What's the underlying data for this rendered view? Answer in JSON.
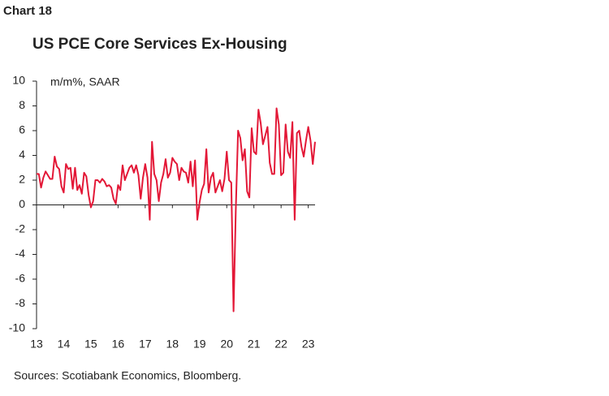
{
  "chart_data": {
    "type": "line",
    "label": "Chart 18",
    "title": "US PCE Core Services Ex-Housing",
    "annotation": "m/m%, SAAR",
    "source": "Sources: Scotiabank Economics, Bloomberg.",
    "x": [
      13,
      13.083,
      13.167,
      13.25,
      13.333,
      13.417,
      13.5,
      13.583,
      13.667,
      13.75,
      13.833,
      13.917,
      14,
      14.083,
      14.167,
      14.25,
      14.333,
      14.417,
      14.5,
      14.583,
      14.667,
      14.75,
      14.833,
      14.917,
      15,
      15.083,
      15.167,
      15.25,
      15.333,
      15.417,
      15.5,
      15.583,
      15.667,
      15.75,
      15.833,
      15.917,
      16,
      16.083,
      16.167,
      16.25,
      16.333,
      16.417,
      16.5,
      16.583,
      16.667,
      16.75,
      16.833,
      16.917,
      17,
      17.083,
      17.167,
      17.25,
      17.333,
      17.417,
      17.5,
      17.583,
      17.667,
      17.75,
      17.833,
      17.917,
      18,
      18.083,
      18.167,
      18.25,
      18.333,
      18.417,
      18.5,
      18.583,
      18.667,
      18.75,
      18.833,
      18.917,
      19,
      19.083,
      19.167,
      19.25,
      19.333,
      19.417,
      19.5,
      19.583,
      19.667,
      19.75,
      19.833,
      19.917,
      20,
      20.083,
      20.167,
      20.25,
      20.333,
      20.417,
      20.5,
      20.583,
      20.667,
      20.75,
      20.833,
      20.917,
      21,
      21.083,
      21.167,
      21.25,
      21.333,
      21.417,
      21.5,
      21.583,
      21.667,
      21.75,
      21.833,
      21.917,
      22,
      22.083,
      22.167,
      22.25,
      22.333,
      22.417,
      22.5,
      22.583,
      22.667,
      22.75,
      22.833,
      22.917,
      23,
      23.083,
      23.167,
      23.25
    ],
    "series": [
      {
        "color": "#e31837",
        "values": [
          2.5,
          2.5,
          1.4,
          2.2,
          2.7,
          2.4,
          2.1,
          2.1,
          3.9,
          3.1,
          2.9,
          1.5,
          1.0,
          3.3,
          2.9,
          3.0,
          1.3,
          3.0,
          1.2,
          1.6,
          0.9,
          2.6,
          2.3,
          0.8,
          -0.2,
          0.3,
          2.0,
          2.0,
          1.8,
          2.1,
          1.9,
          1.5,
          1.6,
          1.4,
          0.5,
          0.1,
          1.6,
          1.2,
          3.2,
          2.0,
          2.5,
          3.0,
          3.2,
          2.6,
          3.2,
          2.4,
          0.5,
          2.2,
          3.3,
          2.2,
          -1.2,
          5.1,
          2.5,
          2.0,
          0.3,
          1.8,
          2.5,
          3.7,
          2.2,
          2.6,
          3.8,
          3.5,
          3.3,
          2.0,
          3.0,
          2.7,
          2.6,
          1.8,
          3.5,
          1.5,
          3.6,
          -1.2,
          0.2,
          1.2,
          1.7,
          4.5,
          1.0,
          2.2,
          2.6,
          1.0,
          1.5,
          2.0,
          1.1,
          2.1,
          4.3,
          2.0,
          1.8,
          -8.6,
          -0.4,
          6.0,
          5.4,
          3.6,
          4.5,
          1.1,
          0.6,
          6.2,
          4.3,
          4.1,
          7.7,
          6.6,
          4.9,
          5.6,
          6.3,
          3.4,
          2.5,
          2.5,
          7.8,
          6.5,
          2.4,
          2.6,
          6.5,
          4.3,
          3.8,
          6.7,
          -1.2,
          5.8,
          6.0,
          4.7,
          3.9,
          5.2,
          6.3,
          5.2,
          3.3,
          5.1
        ]
      }
    ],
    "xlim": [
      13,
      23.25
    ],
    "xticks": [
      13,
      14,
      15,
      16,
      17,
      18,
      19,
      20,
      21,
      22,
      23
    ],
    "ylim": [
      -10,
      10
    ],
    "yticks": [
      -10,
      -8,
      -6,
      -4,
      -2,
      0,
      2,
      4,
      6,
      8,
      10
    ]
  }
}
